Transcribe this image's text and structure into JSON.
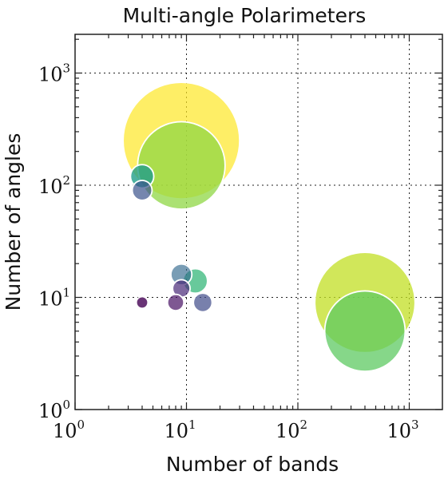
{
  "chart_data": {
    "type": "scatter",
    "title": "Multi-angle Polarimeters",
    "xlabel": "Number of bands",
    "ylabel": "Number of angles",
    "xscale": "log",
    "yscale": "log",
    "xlim": [
      1,
      2000
    ],
    "ylim": [
      1,
      2000
    ],
    "grid": true,
    "xticks": [
      {
        "base": "10",
        "exp": "0",
        "value": 1
      },
      {
        "base": "10",
        "exp": "1",
        "value": 10
      },
      {
        "base": "10",
        "exp": "2",
        "value": 100
      },
      {
        "base": "10",
        "exp": "3",
        "value": 1000
      }
    ],
    "yticks": [
      {
        "base": "10",
        "exp": "0",
        "value": 1
      },
      {
        "base": "10",
        "exp": "1",
        "value": 10
      },
      {
        "base": "10",
        "exp": "2",
        "value": 100
      },
      {
        "base": "10",
        "exp": "3",
        "value": 1000
      }
    ],
    "points": [
      {
        "x": 9,
        "y": 250,
        "size": 1.0,
        "color": "#fde725",
        "alpha": 0.7
      },
      {
        "x": 400,
        "y": 9,
        "size": 0.86,
        "color": "#c2df23",
        "alpha": 0.75
      },
      {
        "x": 9,
        "y": 150,
        "size": 0.75,
        "color": "#8fd744",
        "alpha": 0.75
      },
      {
        "x": 400,
        "y": 5,
        "size": 0.69,
        "color": "#5ec962",
        "alpha": 0.75
      },
      {
        "x": 12,
        "y": 14,
        "size": 0.21,
        "color": "#35b779",
        "alpha": 0.75
      },
      {
        "x": 4,
        "y": 120,
        "size": 0.2,
        "color": "#1f9e89",
        "alpha": 0.8
      },
      {
        "x": 9,
        "y": 16,
        "size": 0.18,
        "color": "#31688e",
        "alpha": 0.65
      },
      {
        "x": 4,
        "y": 90,
        "size": 0.17,
        "color": "#3b528b",
        "alpha": 0.7
      },
      {
        "x": 14,
        "y": 9,
        "size": 0.16,
        "color": "#3e4a89",
        "alpha": 0.7
      },
      {
        "x": 9,
        "y": 12,
        "size": 0.15,
        "color": "#482878",
        "alpha": 0.7
      },
      {
        "x": 8,
        "y": 9,
        "size": 0.14,
        "color": "#471164",
        "alpha": 0.7
      },
      {
        "x": 4,
        "y": 9,
        "size": 0.1,
        "color": "#440154",
        "alpha": 0.8
      }
    ]
  }
}
